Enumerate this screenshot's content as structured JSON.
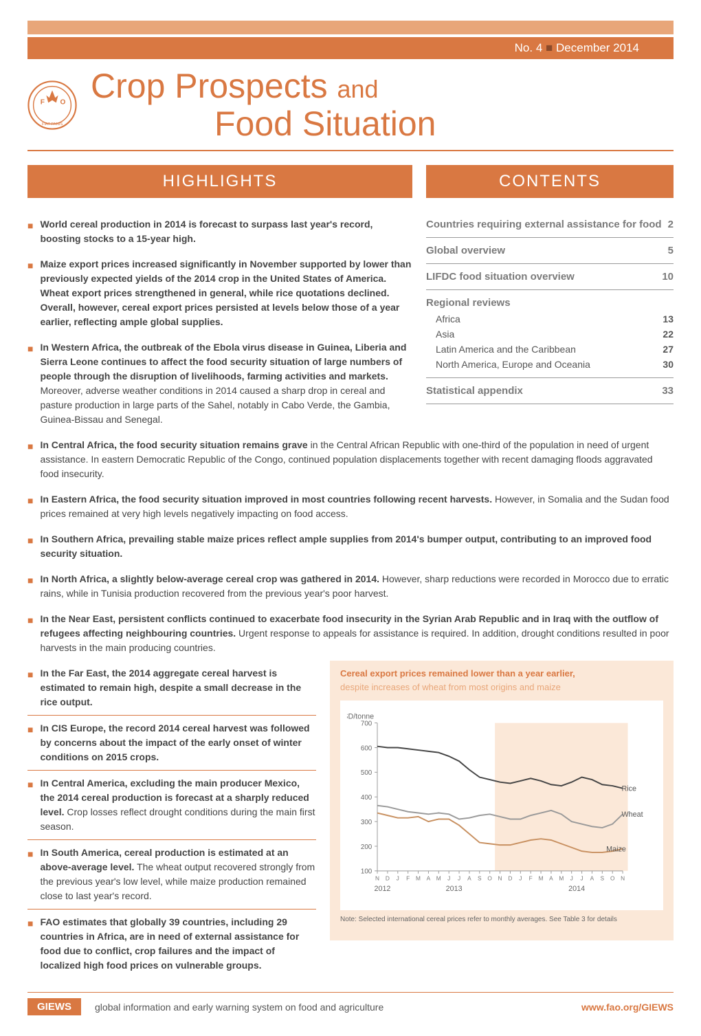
{
  "issue": {
    "number": "No. 4",
    "date": "December 2014"
  },
  "title": {
    "line1_a": "Crop Prospects",
    "line1_b": "and",
    "line2": "Food Situation"
  },
  "headers": {
    "highlights": "HIGHLIGHTS",
    "contents": "CONTENTS"
  },
  "highlights_top": [
    {
      "bold": "World cereal production in 2014 is forecast to surpass last year's record, boosting stocks to a 15-year high.",
      "normal": ""
    },
    {
      "bold": "Maize export prices increased significantly in November supported by lower than previously expected yields of the 2014 crop in the United States of America. Wheat export prices strengthened in general, while rice quotations declined. Overall, however, cereal export prices persisted at levels below those of a year earlier, reflecting ample global supplies.",
      "normal": ""
    },
    {
      "bold": "In Western Africa, the outbreak of the Ebola virus disease in Guinea, Liberia and Sierra Leone continues to affect the food security situation of large numbers of people through the disruption of livelihoods, farming activities and markets.",
      "normal": " Moreover, adverse weather conditions in 2014 caused a sharp drop in cereal and pasture production in large parts of the Sahel, notably in Cabo Verde, the Gambia, Guinea-Bissau and Senegal."
    }
  ],
  "highlights_full": [
    {
      "bold": "In Central Africa, the food security situation remains grave",
      "normal": " in the Central African Republic with one-third of the population in need of urgent assistance. In eastern Democratic Republic of the Congo, continued population displacements together with recent damaging floods aggravated food insecurity."
    },
    {
      "bold": "In Eastern Africa, the food security situation improved in most countries following recent harvests.",
      "normal": " However, in Somalia and the Sudan food prices remained at very high levels negatively impacting on food access."
    },
    {
      "bold": "In Southern Africa, prevailing stable maize prices reflect ample supplies from 2014's bumper output, contributing to an improved food security situation.",
      "normal": ""
    },
    {
      "bold": "In North Africa, a slightly below-average cereal crop was gathered in 2014.",
      "normal": " However, sharp reductions were recorded in Morocco due to erratic rains, while in Tunisia production recovered from the previous year's poor harvest."
    },
    {
      "bold": "In the Near East, persistent conflicts continued to exacerbate food insecurity in the Syrian Arab Republic and in Iraq with the outflow of refugees affecting neighbouring countries.",
      "normal": " Urgent response to appeals for assistance is required. In addition, drought conditions resulted in poor harvests in the main producing countries."
    }
  ],
  "highlights_lower": [
    {
      "bold": "In the Far East, the 2014 aggregate cereal harvest is estimated to remain high, despite a small decrease in the rice output.",
      "normal": ""
    },
    {
      "bold": "In CIS Europe, the record 2014 cereal harvest was followed by concerns about the impact of the early onset of winter conditions on 2015 crops.",
      "normal": ""
    },
    {
      "bold": "In Central America, excluding the main producer Mexico, the 2014 cereal production is forecast at a sharply reduced level.",
      "normal": " Crop losses reflect drought conditions during the main first season."
    },
    {
      "bold": "In South America, cereal production is estimated at an above-average level.",
      "normal": " The wheat output recovered strongly from the previous year's low level, while maize production remained close to last year's record."
    },
    {
      "bold": "FAO estimates that globally 39 countries, including 29 countries in Africa, are in need of external assistance for food due to conflict, crop failures and the impact of localized high food prices on vulnerable groups.",
      "normal": ""
    }
  ],
  "contents": {
    "items": [
      {
        "label": "Countries requiring external assistance for food",
        "page": "2"
      },
      {
        "label": "Global overview",
        "page": "5"
      },
      {
        "label": "LIFDC food situation overview",
        "page": "10"
      }
    ],
    "regional_header": "Regional reviews",
    "regional": [
      {
        "label": "Africa",
        "page": "13"
      },
      {
        "label": "Asia",
        "page": "22"
      },
      {
        "label": "Latin America and the Caribbean",
        "page": "27"
      },
      {
        "label": "North America, Europe and Oceania",
        "page": "30"
      }
    ],
    "appendix": {
      "label": "Statistical appendix",
      "page": "33"
    }
  },
  "chart": {
    "title": "Cereal export prices remained lower than a year earlier,",
    "subtitle": "despite increases of wheat from most origins and maize",
    "ylabel": "USD/tonne",
    "yticks": [
      100,
      200,
      300,
      400,
      500,
      600,
      700
    ],
    "ylim": [
      100,
      700
    ],
    "xlabels": [
      "N",
      "D",
      "J",
      "F",
      "M",
      "A",
      "M",
      "J",
      "J",
      "A",
      "S",
      "O",
      "N",
      "D",
      "J",
      "F",
      "M",
      "A",
      "M",
      "J",
      "J",
      "A",
      "S",
      "O",
      "N"
    ],
    "year_labels": [
      "2012",
      "2013",
      "2014"
    ],
    "year_positions": [
      0.5,
      7.5,
      19.5
    ],
    "highlight_start_idx": 12,
    "series": [
      {
        "name": "Rice",
        "color": "#444444",
        "label_pos": 23.5,
        "label_y": 435,
        "values": [
          605,
          600,
          600,
          595,
          590,
          585,
          580,
          565,
          545,
          510,
          480,
          470,
          460,
          455,
          465,
          475,
          465,
          450,
          445,
          460,
          480,
          470,
          450,
          445,
          435
        ]
      },
      {
        "name": "Wheat",
        "color": "#999999",
        "label_pos": 23.5,
        "label_y": 330,
        "values": [
          365,
          360,
          350,
          340,
          335,
          330,
          335,
          330,
          310,
          315,
          325,
          330,
          320,
          310,
          310,
          325,
          335,
          345,
          330,
          300,
          290,
          280,
          275,
          290,
          330
        ]
      },
      {
        "name": "Maize",
        "color": "#c89060",
        "label_pos": 22.0,
        "label_y": 190,
        "values": [
          335,
          325,
          315,
          315,
          320,
          300,
          310,
          310,
          285,
          250,
          215,
          210,
          205,
          205,
          215,
          225,
          230,
          225,
          210,
          195,
          180,
          175,
          175,
          180,
          190
        ]
      }
    ],
    "note": "Note: Selected international cereal prices refer to monthly averages. See Table 3 for details",
    "bg_color": "#fbe8d8",
    "plot_bg": "#ffffff",
    "highlight_bg": "#fbe8d8",
    "axis_color": "#999999"
  },
  "footer": {
    "badge": "GIEWS",
    "text": "global information and early warning system on food and agriculture",
    "link": "www.fao.org/GIEWS"
  }
}
